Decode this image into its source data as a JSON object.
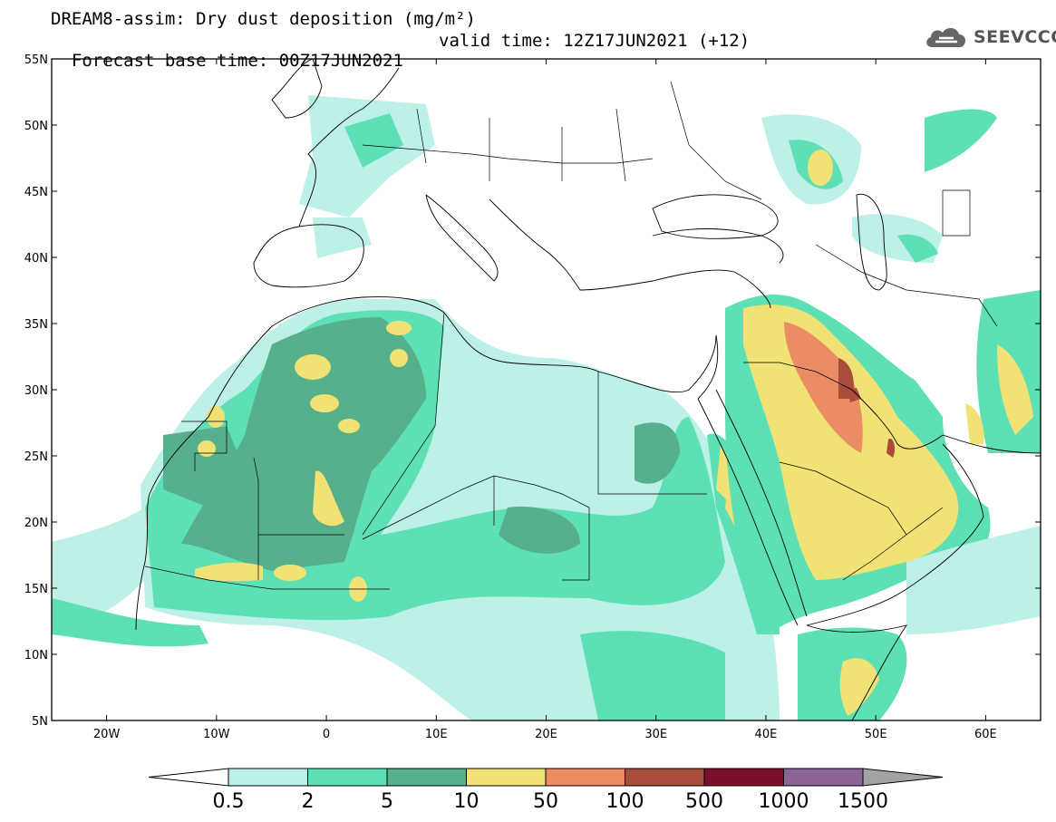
{
  "header": {
    "title_line": "DREAM8-assim: Dry dust deposition (mg/m²)",
    "base_time": "Forecast base time: 00Z17JUN2021",
    "valid_time": "valid time: 12Z17JUN2021 (+12)"
  },
  "logo": {
    "text": "SEEVCCC",
    "icon": "cloud-icon"
  },
  "map": {
    "lon_range": [
      -25,
      65
    ],
    "lat_range": [
      5,
      55
    ],
    "lat_ticks": [
      {
        "lat": 55,
        "label": "55N"
      },
      {
        "lat": 50,
        "label": "50N"
      },
      {
        "lat": 45,
        "label": "45N"
      },
      {
        "lat": 40,
        "label": "40N"
      },
      {
        "lat": 35,
        "label": "35N"
      },
      {
        "lat": 30,
        "label": "30N"
      },
      {
        "lat": 25,
        "label": "25N"
      },
      {
        "lat": 20,
        "label": "20N"
      },
      {
        "lat": 15,
        "label": "15N"
      },
      {
        "lat": 10,
        "label": "10N"
      },
      {
        "lat": 5,
        "label": "5N"
      }
    ],
    "lon_ticks": [
      {
        "lon": -20,
        "label": "20W"
      },
      {
        "lon": -10,
        "label": "10W"
      },
      {
        "lon": 0,
        "label": "0"
      },
      {
        "lon": 10,
        "label": "10E"
      },
      {
        "lon": 20,
        "label": "20E"
      },
      {
        "lon": 30,
        "label": "30E"
      },
      {
        "lon": 40,
        "label": "40E"
      },
      {
        "lon": 50,
        "label": "50E"
      },
      {
        "lon": 60,
        "label": "60E"
      }
    ]
  },
  "colorbar": {
    "colors": [
      "#bdf0e6",
      "#5ee0b6",
      "#56b08c",
      "#f0e274",
      "#eb8c64",
      "#aa4c3c",
      "#7c0f2c",
      "#8c6496"
    ],
    "under_color": "#ffffff",
    "over_color": "#a3a3a3",
    "labels": [
      "0.5",
      "2",
      "5",
      "10",
      "50",
      "100",
      "500",
      "1000",
      "1500"
    ]
  }
}
